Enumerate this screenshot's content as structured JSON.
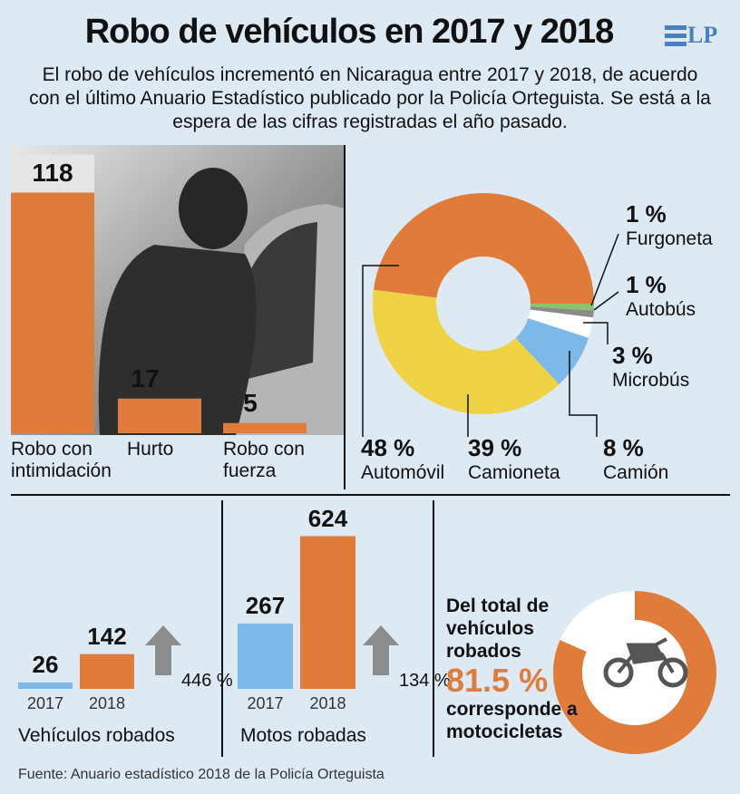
{
  "title": "Robo de vehículos en 2017 y 2018",
  "logo": "LP",
  "subtitle": "El robo de vehículos incrementó en Nicaragua entre 2017 y 2018, de acuerdo con el último Anuario Estadístico publicado por la Policía Orteguista. Se está a la espera de las cifras registradas el año pasado.",
  "source": "Fuente: Anuario estadístico 2018 de la Policía Orteguista",
  "chart_data": [
    {
      "type": "bar",
      "categories": [
        "Robo con intimidación",
        "Hurto",
        "Robo con fuerza"
      ],
      "values": [
        118,
        17,
        5
      ],
      "color": "#e07b39"
    },
    {
      "type": "pie",
      "categories": [
        "Automóvil",
        "Camioneta",
        "Camión",
        "Microbús",
        "Autobús",
        "Furgoneta"
      ],
      "values": [
        48,
        39,
        8,
        3,
        1,
        1
      ],
      "value_labels": [
        "48 %",
        "39 %",
        "8 %",
        "3 %",
        "1 %",
        "1 %"
      ],
      "colors": [
        "#e07b39",
        "#f0d245",
        "#7cb9e8",
        "#ffffff",
        "#8a8a8a",
        "#8dc26f"
      ]
    },
    {
      "type": "bar",
      "title": "Vehículos robados",
      "categories": [
        "2017",
        "2018"
      ],
      "values": [
        26,
        142
      ],
      "colors": [
        "#7cb9e8",
        "#e07b39"
      ],
      "annotation": "446 %"
    },
    {
      "type": "bar",
      "title": "Motos robadas",
      "categories": [
        "2017",
        "2018"
      ],
      "values": [
        267,
        624
      ],
      "colors": [
        "#7cb9e8",
        "#e07b39"
      ],
      "annotation": "134 %"
    },
    {
      "type": "pie",
      "text_before": "Del total de vehículos robados",
      "values": [
        81.5
      ],
      "value_labels": [
        "81.5 %"
      ],
      "text_after": "corresponde a motocicletas",
      "color": "#e07b39"
    }
  ]
}
